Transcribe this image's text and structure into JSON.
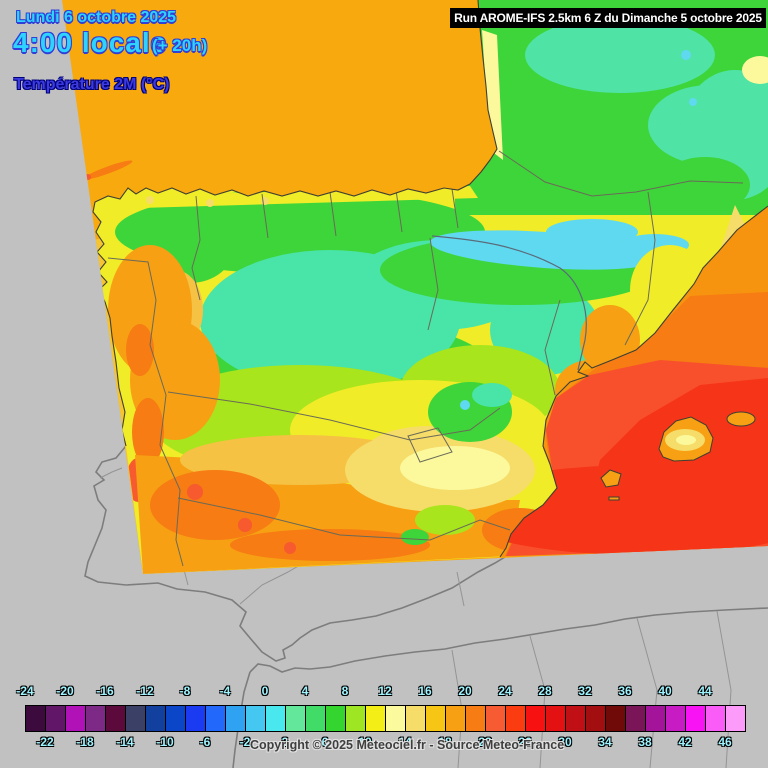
{
  "header": {
    "date_line": "Lundi 6 octobre 2025",
    "time_line": "4:00 locale",
    "offset_label": "(+ 20h)",
    "variable_label": "Température 2M (°C)",
    "run_label": "Run AROME-IFS 2.5km 6 Z du Dimanche 5 octobre 2025"
  },
  "footer": {
    "copyright": "Copyright © 2025 Meteociel.fr - Source Meteo-France"
  },
  "legend": {
    "unit": "°C",
    "min": -24,
    "max": 48,
    "step": 2,
    "top_labels": [
      "-24",
      "-20",
      "-16",
      "-12",
      "-8",
      "-4",
      "0",
      "4",
      "8",
      "12",
      "16",
      "20",
      "24",
      "28",
      "32",
      "36",
      "40",
      "44"
    ],
    "bottom_labels": [
      "-22",
      "-18",
      "-14",
      "-10",
      "-6",
      "-2",
      "2",
      "6",
      "10",
      "14",
      "18",
      "22",
      "26",
      "30",
      "34",
      "38",
      "42",
      "46"
    ],
    "cells": [
      {
        "from": -24,
        "to": -22,
        "color": "#3d0a3d"
      },
      {
        "from": -22,
        "to": -20,
        "color": "#621668"
      },
      {
        "from": -20,
        "to": -18,
        "color": "#b012b8"
      },
      {
        "from": -18,
        "to": -16,
        "color": "#7c2a86"
      },
      {
        "from": -16,
        "to": -14,
        "color": "#5c0a3c"
      },
      {
        "from": -14,
        "to": -12,
        "color": "#3a4066"
      },
      {
        "from": -12,
        "to": -10,
        "color": "#12409f"
      },
      {
        "from": -10,
        "to": -8,
        "color": "#0c46c8"
      },
      {
        "from": -8,
        "to": -6,
        "color": "#1b3bf2"
      },
      {
        "from": -6,
        "to": -4,
        "color": "#2268fa"
      },
      {
        "from": -4,
        "to": -2,
        "color": "#2fa3f2"
      },
      {
        "from": -2,
        "to": 0,
        "color": "#44c8f2"
      },
      {
        "from": 0,
        "to": 2,
        "color": "#48e8ee"
      },
      {
        "from": 2,
        "to": 4,
        "color": "#62e79b"
      },
      {
        "from": 4,
        "to": 6,
        "color": "#41dc68"
      },
      {
        "from": 6,
        "to": 8,
        "color": "#33d52e"
      },
      {
        "from": 8,
        "to": 10,
        "color": "#9ee523"
      },
      {
        "from": 10,
        "to": 12,
        "color": "#f3ef16"
      },
      {
        "from": 12,
        "to": 14,
        "color": "#fbfa9c"
      },
      {
        "from": 14,
        "to": 16,
        "color": "#f6dc69"
      },
      {
        "from": 16,
        "to": 18,
        "color": "#f7c513"
      },
      {
        "from": 18,
        "to": 20,
        "color": "#f7a013"
      },
      {
        "from": 20,
        "to": 22,
        "color": "#f67c13"
      },
      {
        "from": 22,
        "to": 24,
        "color": "#f75b33"
      },
      {
        "from": 24,
        "to": 26,
        "color": "#fb3b10"
      },
      {
        "from": 26,
        "to": 28,
        "color": "#f71111"
      },
      {
        "from": 28,
        "to": 30,
        "color": "#e31112"
      },
      {
        "from": 30,
        "to": 32,
        "color": "#c01016"
      },
      {
        "from": 32,
        "to": 34,
        "color": "#a30e10"
      },
      {
        "from": 34,
        "to": 36,
        "color": "#6f0a09"
      },
      {
        "from": 36,
        "to": 38,
        "color": "#7a1657"
      },
      {
        "from": 38,
        "to": 40,
        "color": "#a3149b"
      },
      {
        "from": 40,
        "to": 42,
        "color": "#c71cc4"
      },
      {
        "from": 42,
        "to": 44,
        "color": "#f713f4"
      },
      {
        "from": 44,
        "to": 46,
        "color": "#fa5cf8"
      },
      {
        "from": 46,
        "to": 48,
        "color": "#fc9bfa"
      }
    ]
  },
  "map": {
    "palette": {
      "out_of_domain_gray": "#c1c1c1",
      "gray_coastline": "#7d7d7d",
      "gray_border": "#949494",
      "coastline_dark": "#3f3f33",
      "border_dark": "#6a6a58",
      "river": "#5a6b7a",
      "sea_atlantic": "#f8a90e",
      "sea_coastal_gold": "#f5c431",
      "sea_med_orange": "#f7940f",
      "sea_med_dark_orange": "#f67c13",
      "sea_med_red_orange": "#f8502c",
      "sea_med_red": "#f63418",
      "land_yellow": "#f0ec28",
      "land_yellow_green": "#a8e51c",
      "land_green": "#3ed53b",
      "land_teal": "#49e4a8",
      "land_teal_light": "#4fe3a6",
      "land_cyan": "#5fd9f0",
      "land_pale_yellow": "#fbf99c",
      "land_khaki": "#f6dc69",
      "land_gold": "#f6c243",
      "land_orange": "#f7a013",
      "land_dark_orange": "#f67c13",
      "land_red_orange": "#f65a2e"
    }
  }
}
